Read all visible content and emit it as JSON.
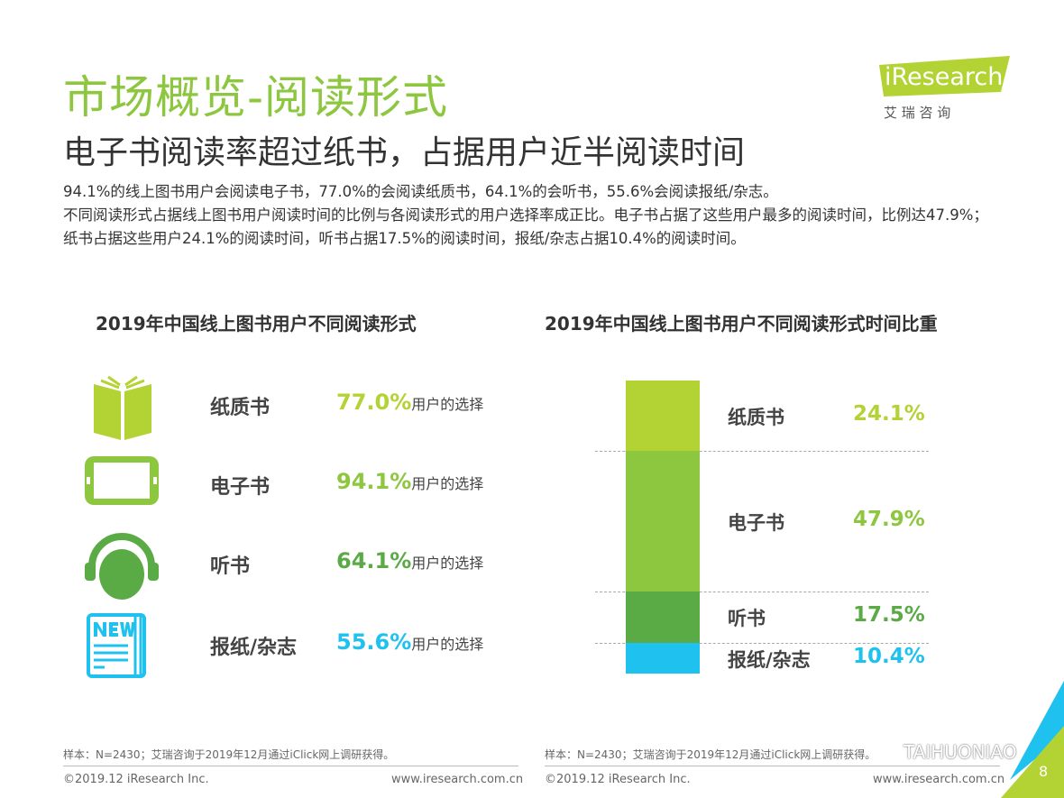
{
  "header": {
    "title": "市场概览-阅读形式",
    "subtitle": "电子书阅读率超过纸书，占据用户近半阅读时间",
    "paragraphs": [
      "94.1%的线上图书用户会阅读电子书，77.0%的会阅读纸质书，64.1%的会听书，55.6%会阅读报纸/杂志。",
      "不同阅读形式占据线上图书用户阅读时间的比例与各阅读形式的用户选择率成正比。电子书占据了这些用户最多的阅读时间，比例达47.9%；纸书占据这些用户24.1%的阅读时间，听书占据17.5%的阅读时间，报纸/杂志占据10.4%的阅读时间。"
    ]
  },
  "logo": {
    "brand": "iResearch",
    "cn": "艾 瑞 咨 询"
  },
  "chart_data": [
    {
      "type": "table",
      "title": "2019年中国线上图书用户不同阅读形式",
      "suffix": "用户的选择",
      "categories": [
        "纸质书",
        "电子书",
        "听书",
        "报纸/杂志"
      ],
      "values": [
        77.0,
        94.1,
        64.1,
        55.6
      ],
      "labels": [
        "77.0%",
        "94.1%",
        "64.1%",
        "55.6%"
      ],
      "icons": [
        "open-book-icon",
        "tablet-icon",
        "headphones-icon",
        "newspaper-icon"
      ],
      "colors": [
        "#b3d234",
        "#8dc63f",
        "#5aaa46",
        "#1fc1ee"
      ]
    },
    {
      "type": "bar",
      "stacked": true,
      "title": "2019年中国线上图书用户不同阅读形式时间比重",
      "categories": [
        "纸质书",
        "电子书",
        "听书",
        "报纸/杂志"
      ],
      "values": [
        24.1,
        47.9,
        17.5,
        10.4
      ],
      "labels": [
        "24.1%",
        "47.9%",
        "17.5%",
        "10.4%"
      ],
      "ylim": [
        0,
        100
      ],
      "colors": [
        "#b3d234",
        "#8dc63f",
        "#5aaa46",
        "#1fc1ee"
      ]
    }
  ],
  "footer": {
    "note": "样本：N=2430；艾瑞咨询于2019年12月通过iClick网上调研获得。",
    "copyright": "©2019.12 iResearch Inc.",
    "url": "www.iresearch.com.cn",
    "page": "8",
    "watermark": "TAIHUONIAO"
  }
}
